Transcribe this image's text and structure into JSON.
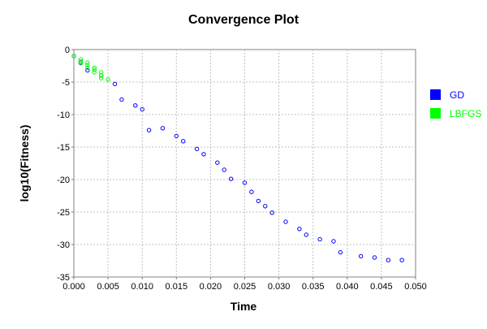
{
  "chart_data": {
    "type": "scatter",
    "title": "Convergence Plot",
    "xlabel": "Time",
    "ylabel": "log10(Fitness)",
    "xlim": [
      0.0,
      0.05
    ],
    "ylim": [
      -35,
      0
    ],
    "x_ticks": [
      "0.000",
      "0.005",
      "0.010",
      "0.015",
      "0.020",
      "0.025",
      "0.030",
      "0.035",
      "0.040",
      "0.045",
      "0.050"
    ],
    "y_ticks": [
      "0",
      "-5",
      "-10",
      "-15",
      "-20",
      "-25",
      "-30",
      "-35"
    ],
    "grid": true,
    "legend_position": "right",
    "series": [
      {
        "name": "GD",
        "color": "#0000ff",
        "x": [
          0.0,
          0.001,
          0.002,
          0.004,
          0.006,
          0.007,
          0.009,
          0.01,
          0.011,
          0.013,
          0.015,
          0.016,
          0.018,
          0.019,
          0.021,
          0.022,
          0.023,
          0.025,
          0.026,
          0.027,
          0.028,
          0.029,
          0.031,
          0.033,
          0.034,
          0.036,
          0.038,
          0.039,
          0.042,
          0.044,
          0.046,
          0.048
        ],
        "y": [
          -1.0,
          -2.0,
          -3.2,
          -4.0,
          -5.3,
          -7.7,
          -8.6,
          -9.2,
          -12.4,
          -12.1,
          -13.3,
          -14.1,
          -15.3,
          -16.1,
          -17.4,
          -18.5,
          -19.9,
          -20.5,
          -21.9,
          -23.3,
          -24.1,
          -25.1,
          -26.5,
          -27.6,
          -28.5,
          -29.2,
          -29.5,
          -31.2,
          -31.8,
          -32.0,
          -32.4,
          -32.4
        ]
      },
      {
        "name": "LBFGS",
        "color": "#00ff00",
        "x": [
          0.0,
          0.001,
          0.001,
          0.001,
          0.002,
          0.002,
          0.002,
          0.003,
          0.003,
          0.003,
          0.004,
          0.004,
          0.004,
          0.005
        ],
        "y": [
          -1.0,
          -1.5,
          -1.8,
          -2.1,
          -2.0,
          -2.4,
          -2.8,
          -2.8,
          -3.1,
          -3.5,
          -3.5,
          -4.0,
          -4.4,
          -4.6
        ]
      }
    ]
  }
}
